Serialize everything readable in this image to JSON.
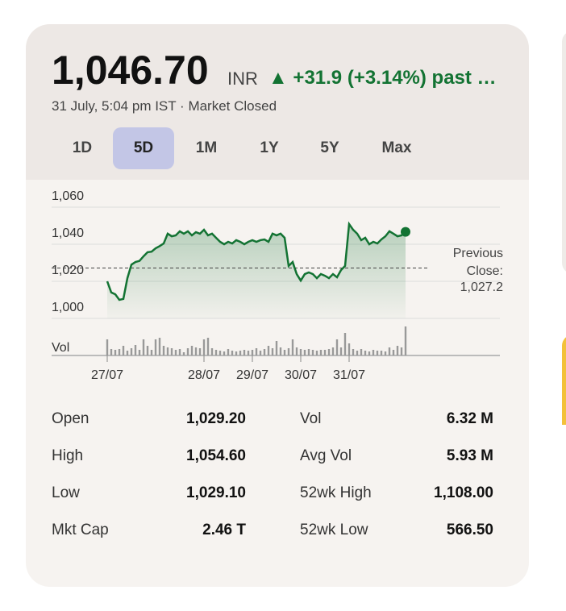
{
  "header": {
    "price": "1,046.70",
    "currency": "INR",
    "change": "▲ +31.9 (+3.14%) past …",
    "subtitle": "31 July, 5:04 pm IST · Market Closed"
  },
  "tabs": {
    "items": [
      "1D",
      "5D",
      "1M",
      "1Y",
      "5Y",
      "Max"
    ],
    "selected": "5D"
  },
  "chart_data": {
    "type": "line",
    "color": "#137333",
    "grid": true,
    "categories": [
      "27/07",
      null,
      null,
      null,
      null,
      null,
      null,
      null,
      null,
      null,
      null,
      null,
      null,
      null,
      null,
      null,
      null,
      null,
      null,
      null,
      null,
      null,
      null,
      null,
      "28/07",
      null,
      null,
      null,
      null,
      null,
      null,
      null,
      null,
      null,
      null,
      null,
      "29/07",
      null,
      null,
      null,
      null,
      null,
      null,
      null,
      null,
      null,
      null,
      null,
      "30/07",
      null,
      null,
      null,
      null,
      null,
      null,
      null,
      null,
      null,
      null,
      null,
      "31/07",
      null,
      null,
      null,
      null,
      null,
      null,
      null,
      null,
      null,
      null,
      null,
      null,
      null,
      null
    ],
    "values": [
      1020,
      1014,
      1013,
      1010,
      1010.5,
      1021.7,
      1029,
      1030.4,
      1031,
      1033.5,
      1035.7,
      1036,
      1037.8,
      1039,
      1040.4,
      1045.7,
      1044.3,
      1044.8,
      1047,
      1045.7,
      1047,
      1044.8,
      1046.5,
      1045.7,
      1047.8,
      1044.8,
      1045.7,
      1043.5,
      1041.3,
      1040,
      1041.3,
      1040.4,
      1042.2,
      1041.3,
      1040,
      1041.3,
      1042.2,
      1041.3,
      1042.2,
      1042.6,
      1041.3,
      1045.7,
      1044.8,
      1045.7,
      1043.5,
      1028.3,
      1030.4,
      1023.9,
      1020.4,
      1023.9,
      1024.8,
      1023.9,
      1021.7,
      1023.9,
      1023,
      1021.7,
      1023.9,
      1022.2,
      1026.1,
      1028.3,
      1050.9,
      1047.8,
      1045.7,
      1042.2,
      1043.5,
      1040,
      1041.3,
      1040.4,
      1042.6,
      1044.3,
      1047,
      1045.7,
      1044.3,
      1044.8,
      1046.7
    ],
    "volume": [
      20,
      8,
      7,
      8,
      12,
      6,
      9,
      13,
      7,
      20,
      12,
      7,
      20,
      22,
      12,
      10,
      9,
      7,
      8,
      4,
      9,
      12,
      10,
      9,
      20,
      22,
      9,
      7,
      6,
      5,
      8,
      6,
      5,
      6,
      7,
      6,
      7,
      9,
      6,
      8,
      12,
      9,
      18,
      10,
      7,
      9,
      20,
      10,
      8,
      7,
      8,
      7,
      6,
      7,
      7,
      8,
      10,
      20,
      10,
      28,
      15,
      8,
      6,
      8,
      6,
      5,
      7,
      6,
      6,
      5,
      10,
      7,
      12,
      10,
      36
    ],
    "volume_label": "Vol",
    "ylim": [
      1000,
      1060
    ],
    "yticks": [
      {
        "value": 1000,
        "label": "1,000"
      },
      {
        "value": 1020,
        "label": "1,020"
      },
      {
        "value": 1040,
        "label": "1,040"
      },
      {
        "value": 1060,
        "label": "1,060"
      }
    ],
    "previous_close": {
      "title": "Previous Close:",
      "value": 1027.2,
      "label": "1,027.2"
    }
  },
  "stats": {
    "rows": [
      [
        "Open",
        "1,029.20",
        "Vol",
        "6.32 M"
      ],
      [
        "High",
        "1,054.60",
        "Avg Vol",
        "5.93 M"
      ],
      [
        "Low",
        "1,029.10",
        "52wk High",
        "1,108.00"
      ],
      [
        "Mkt Cap",
        "2.46 T",
        "52wk Low",
        "566.50"
      ]
    ]
  }
}
